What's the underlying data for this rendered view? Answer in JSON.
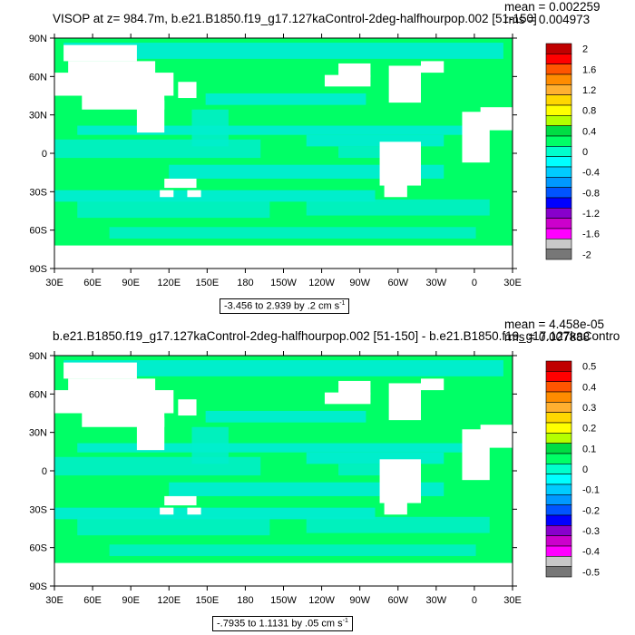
{
  "colors": {
    "land": "#ffffff",
    "ocean_low": "#00eecc",
    "ocean_mid": "#1ee85e",
    "ocean_zero": "#00ff66"
  },
  "chart_data": [
    {
      "type": "heatmap",
      "title": "VISOP at z= 984.7m, b.e21.B1850.f19_g17.127kaControl-2deg-halfhourpop.002 [51-150]",
      "mean_label": "mean = 0.002259",
      "rms_label": "rms = 0.004973",
      "range_text": "-3.456 to 2.939 by .2 cm s",
      "range_unit_sup": "-1",
      "x_ticks": [
        "30E",
        "60E",
        "90E",
        "120E",
        "150E",
        "180",
        "150W",
        "120W",
        "90W",
        "60W",
        "30W",
        "0",
        "30E"
      ],
      "y_ticks": [
        "90N",
        "60N",
        "30N",
        "0",
        "30S",
        "60S",
        "90S"
      ],
      "colorbar_labels": [
        "2",
        "1.6",
        "1.2",
        "0.8",
        "0.4",
        "0",
        "-0.4",
        "-0.8",
        "-1.2",
        "-1.6",
        "-2"
      ],
      "colorbar_colors": [
        "#c00000",
        "#ff0000",
        "#ff5500",
        "#ff8c00",
        "#ffb030",
        "#ffd700",
        "#ffff00",
        "#b4ff00",
        "#00dd44",
        "#00ff66",
        "#00ffcc",
        "#00ffff",
        "#00ccff",
        "#0099ff",
        "#0055ff",
        "#0000ff",
        "#8800cc",
        "#cc00cc",
        "#ff00ff",
        "#c8c8c8",
        "#777777"
      ],
      "grid": false
    },
    {
      "type": "heatmap",
      "title": "b.e21.B1850.f19_g17.127kaControl-2deg-halfhourpop.002 [51-150] - b.e21.B1850.f19_g17.127kaContro",
      "mean_label": "mean = 4.458e-05",
      "rms_label": "rms = 0.007888",
      "range_text": "-.7935 to 1.1131 by .05 cm s",
      "range_unit_sup": "-1",
      "x_ticks": [
        "30E",
        "60E",
        "90E",
        "120E",
        "150E",
        "180",
        "150W",
        "120W",
        "90W",
        "60W",
        "30W",
        "0",
        "30E"
      ],
      "y_ticks": [
        "90N",
        "60N",
        "30N",
        "0",
        "30S",
        "60S",
        "90S"
      ],
      "colorbar_labels": [
        "0.5",
        "0.4",
        "0.3",
        "0.2",
        "0.1",
        "0",
        "-0.1",
        "-0.2",
        "-0.3",
        "-0.4",
        "-0.5"
      ],
      "colorbar_colors": [
        "#c00000",
        "#ff0000",
        "#ff5500",
        "#ff8c00",
        "#ffb030",
        "#ffd700",
        "#ffff00",
        "#b4ff00",
        "#00dd44",
        "#00ff66",
        "#00ffcc",
        "#00ffff",
        "#00ccff",
        "#0099ff",
        "#0055ff",
        "#0000ff",
        "#8800cc",
        "#cc00cc",
        "#ff00ff",
        "#c8c8c8",
        "#777777"
      ],
      "grid": false
    }
  ]
}
